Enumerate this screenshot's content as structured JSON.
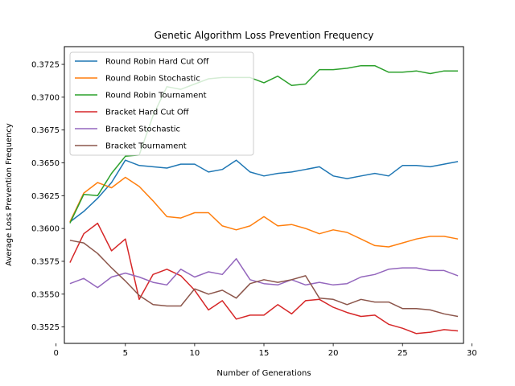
{
  "chart_data": {
    "type": "line",
    "title": "Genetic Algorithm Loss Prevention Frequency",
    "xlabel": "Number of Generations",
    "ylabel": "Average Loss Prevention Frequency",
    "xlim": [
      0.6,
      29.4
    ],
    "ylim": [
      0.35125,
      0.37385
    ],
    "xticks": [
      0,
      5,
      10,
      15,
      20,
      25,
      30
    ],
    "yticks": [
      0.3525,
      0.355,
      0.3575,
      0.36,
      0.3625,
      0.365,
      0.3675,
      0.37,
      0.3725
    ],
    "grid": false,
    "legend_position": "upper-left",
    "x": [
      1,
      2,
      3,
      4,
      5,
      6,
      7,
      8,
      9,
      10,
      11,
      12,
      13,
      14,
      15,
      16,
      17,
      18,
      19,
      20,
      21,
      22,
      23,
      24,
      25,
      26,
      27,
      28,
      29
    ],
    "series": [
      {
        "name": "Round Robin Hard Cut Off",
        "color": "#1f77b4",
        "values": [
          0.3605,
          0.3613,
          0.3623,
          0.3635,
          0.3652,
          0.3648,
          0.3647,
          0.3646,
          0.3649,
          0.3649,
          0.3643,
          0.3645,
          0.3652,
          0.3643,
          0.364,
          0.3642,
          0.3643,
          0.3645,
          0.3647,
          0.364,
          0.3638,
          0.364,
          0.3642,
          0.364,
          0.3648,
          0.3648,
          0.3647,
          0.3649,
          0.3651
        ]
      },
      {
        "name": "Round Robin Stochastic",
        "color": "#ff7f0e",
        "values": [
          0.3605,
          0.3627,
          0.3635,
          0.3631,
          0.3639,
          0.3632,
          0.3621,
          0.3609,
          0.3608,
          0.3612,
          0.3612,
          0.3602,
          0.3599,
          0.3602,
          0.3609,
          0.3602,
          0.3603,
          0.36,
          0.3596,
          0.3599,
          0.3597,
          0.3592,
          0.3587,
          0.3586,
          0.3589,
          0.3592,
          0.3594,
          0.3594,
          0.3592
        ]
      },
      {
        "name": "Round Robin Tournament",
        "color": "#2ca02c",
        "values": [
          0.3604,
          0.3626,
          0.3625,
          0.3642,
          0.3655,
          0.3656,
          0.3686,
          0.3708,
          0.3706,
          0.371,
          0.3714,
          0.3715,
          0.3715,
          0.3715,
          0.3711,
          0.3716,
          0.3709,
          0.371,
          0.3721,
          0.3721,
          0.3722,
          0.3724,
          0.3724,
          0.3719,
          0.3719,
          0.372,
          0.3718,
          0.372,
          0.372
        ]
      },
      {
        "name": "Bracket Hard Cut Off",
        "color": "#d62728",
        "values": [
          0.3574,
          0.3596,
          0.3604,
          0.3583,
          0.3592,
          0.3546,
          0.3565,
          0.3569,
          0.3564,
          0.3553,
          0.3538,
          0.3545,
          0.3531,
          0.3534,
          0.3534,
          0.3542,
          0.3535,
          0.3545,
          0.3546,
          0.354,
          0.3536,
          0.3533,
          0.3534,
          0.3527,
          0.3524,
          0.352,
          0.3521,
          0.3523,
          0.3522
        ]
      },
      {
        "name": "Bracket Stochastic",
        "color": "#9467bd",
        "values": [
          0.3558,
          0.3562,
          0.3555,
          0.3563,
          0.3566,
          0.3563,
          0.3559,
          0.3557,
          0.3569,
          0.3563,
          0.3567,
          0.3565,
          0.3577,
          0.3561,
          0.3558,
          0.3557,
          0.3561,
          0.3557,
          0.3559,
          0.3557,
          0.3558,
          0.3563,
          0.3565,
          0.3569,
          0.357,
          0.357,
          0.3568,
          0.3568,
          0.3564
        ]
      },
      {
        "name": "Bracket Tournament",
        "color": "#8c564b",
        "values": [
          0.3591,
          0.3589,
          0.3581,
          0.357,
          0.356,
          0.3549,
          0.3542,
          0.3541,
          0.3541,
          0.3554,
          0.355,
          0.3553,
          0.3547,
          0.3558,
          0.3561,
          0.3559,
          0.3561,
          0.3564,
          0.3547,
          0.3546,
          0.3542,
          0.3546,
          0.3544,
          0.3544,
          0.3539,
          0.3539,
          0.3538,
          0.3535,
          0.3533
        ]
      }
    ]
  }
}
